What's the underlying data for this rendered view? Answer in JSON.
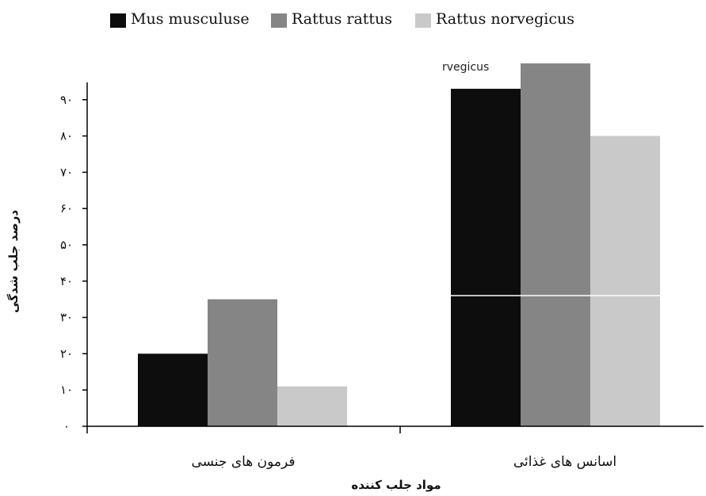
{
  "chart_data": {
    "type": "bar",
    "categories": [
      "فرمون های جنسی",
      "اسانس های غذائی"
    ],
    "series": [
      {
        "name": "Mus musculuse",
        "color": "#0d0d0d",
        "values": [
          20,
          93
        ]
      },
      {
        "name": "Rattus rattus",
        "color": "#858585",
        "values": [
          35,
          100
        ]
      },
      {
        "name": "Rattus norvegicus",
        "color": "#c9c9c9",
        "values": [
          11,
          80
        ]
      }
    ],
    "ylabel": "درصد جلب شدگی",
    "xlabel": "مواد جلب کننده",
    "ylim": [
      0,
      100
    ],
    "yticks": [
      0,
      10,
      20,
      30,
      40,
      50,
      60,
      70,
      80,
      90
    ],
    "ytick_labels": [
      "۰",
      "۱۰",
      "۲۰",
      "۳۰",
      "۴۰",
      "۵۰",
      "۶۰",
      "۷۰",
      "۸۰",
      "۹۰"
    ],
    "legend_position": "top",
    "grid": false,
    "stray_label": "rvegicus"
  }
}
